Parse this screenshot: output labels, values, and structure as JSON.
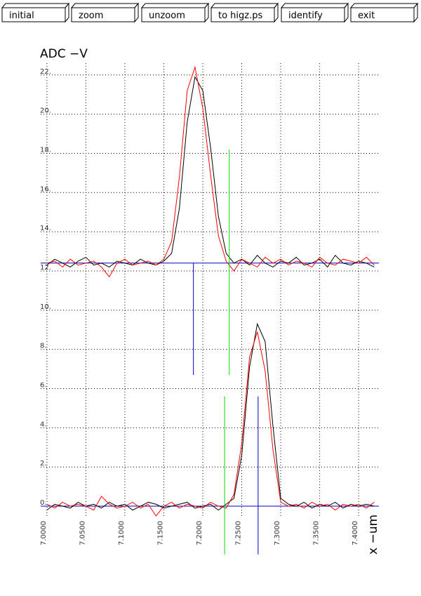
{
  "buttons": [
    "initial",
    "zoom",
    "unzoom",
    "to higz.ps",
    "identify",
    "exit"
  ],
  "chart_data": {
    "type": "line",
    "y_label": "ADC  −V",
    "x_label": "x  −um",
    "x": [
      7.0,
      7.01,
      7.02,
      7.03,
      7.04,
      7.05,
      7.06,
      7.07,
      7.08,
      7.09,
      7.1,
      7.11,
      7.12,
      7.13,
      7.14,
      7.15,
      7.16,
      7.17,
      7.18,
      7.19,
      7.2,
      7.21,
      7.22,
      7.23,
      7.24,
      7.25,
      7.26,
      7.27,
      7.28,
      7.29,
      7.3,
      7.31,
      7.32,
      7.33,
      7.34,
      7.35,
      7.36,
      7.37,
      7.38,
      7.39,
      7.4,
      7.41,
      7.42
    ],
    "series": [
      {
        "color": "#000000",
        "values": [
          12.3,
          12.6,
          12.4,
          12.2,
          12.5,
          12.7,
          12.3,
          12.4,
          12.2,
          12.5,
          12.4,
          12.3,
          12.6,
          12.4,
          12.3,
          12.5,
          12.9,
          15.2,
          19.6,
          21.9,
          21.2,
          18.3,
          14.8,
          12.9,
          12.4,
          12.6,
          12.3,
          12.8,
          12.4,
          12.2,
          12.5,
          12.4,
          12.7,
          12.3,
          12.4,
          12.6,
          12.2,
          12.8,
          12.4,
          12.3,
          12.5,
          12.4,
          12.2
        ]
      },
      {
        "color": "#ff0000",
        "values": [
          12.4,
          12.5,
          12.2,
          12.6,
          12.3,
          12.4,
          12.5,
          12.2,
          11.7,
          12.4,
          12.6,
          12.3,
          12.4,
          12.5,
          12.3,
          12.6,
          13.5,
          16.8,
          21.2,
          22.4,
          20.3,
          16.9,
          13.8,
          12.5,
          12.0,
          12.6,
          12.4,
          12.2,
          12.7,
          12.4,
          12.6,
          12.3,
          12.5,
          12.4,
          12.2,
          12.7,
          12.4,
          12.3,
          12.6,
          12.5,
          12.4,
          12.7,
          12.3
        ]
      },
      {
        "color": "#000000",
        "values": [
          -0.2,
          0.1,
          0.0,
          -0.1,
          0.2,
          0.0,
          0.1,
          -0.1,
          0.2,
          0.0,
          0.1,
          -0.2,
          0.0,
          0.2,
          0.1,
          -0.1,
          0.0,
          0.1,
          0.2,
          -0.1,
          0.0,
          0.1,
          -0.2,
          0.1,
          0.4,
          2.6,
          7.1,
          9.3,
          8.4,
          4.1,
          0.4,
          0.1,
          0.0,
          0.2,
          -0.1,
          0.1,
          0.0,
          0.2,
          -0.1,
          0.1,
          0.0,
          0.1,
          0.0
        ]
      },
      {
        "color": "#ff0000",
        "values": [
          0.1,
          -0.1,
          0.2,
          0.0,
          0.1,
          0.0,
          -0.2,
          0.5,
          0.1,
          -0.1,
          0.0,
          0.2,
          -0.1,
          0.1,
          -0.5,
          0.0,
          0.2,
          -0.1,
          0.1,
          0.0,
          -0.1,
          0.2,
          0.0,
          -0.1,
          0.6,
          3.2,
          7.6,
          8.9,
          6.9,
          2.9,
          0.2,
          0.0,
          0.1,
          -0.1,
          0.2,
          0.0,
          0.1,
          -0.2,
          0.1,
          0.0,
          0.1,
          -0.1,
          0.2
        ]
      }
    ],
    "hlines": [
      {
        "y": 12.4,
        "color": "#0000cc"
      },
      {
        "y": 0,
        "color": "#0000cc"
      }
    ],
    "markers": [
      {
        "x": 7.188,
        "y": [
          6.7,
          12.4
        ],
        "color": "#0000cc"
      },
      {
        "x": 7.234,
        "y": [
          6.7,
          18.2
        ],
        "color": "#00dd00"
      },
      {
        "x": 7.228,
        "y": [
          -2.46,
          5.6
        ],
        "color": "#00dd00"
      },
      {
        "x": 7.271,
        "y": [
          -2.46,
          5.6
        ],
        "color": "#0000cc"
      }
    ],
    "xlim": [
      6.992,
      7.426
    ],
    "xticks": [
      {
        "value": 7.0,
        "label": "7.0000"
      },
      {
        "value": 7.05,
        "label": "7.0500"
      },
      {
        "value": 7.1,
        "label": "7.1000"
      },
      {
        "value": 7.15,
        "label": "7.1500"
      },
      {
        "value": 7.2,
        "label": "7.2000"
      },
      {
        "value": 7.25,
        "label": "7.2500"
      },
      {
        "value": 7.3,
        "label": "7.3000"
      },
      {
        "value": 7.35,
        "label": "7.3500"
      },
      {
        "value": 7.4,
        "label": "7.4000"
      }
    ],
    "ylim": [
      -0.5,
      22.6
    ],
    "yticks": [
      {
        "value": 0,
        "label": "0."
      },
      {
        "value": 2,
        "label": "2."
      },
      {
        "value": 4,
        "label": "4."
      },
      {
        "value": 6,
        "label": "6."
      },
      {
        "value": 8,
        "label": "8."
      },
      {
        "value": 10,
        "label": "10."
      },
      {
        "value": 12,
        "label": "12."
      },
      {
        "value": 14,
        "label": "14."
      },
      {
        "value": 16,
        "label": "16."
      },
      {
        "value": 18,
        "label": "18."
      },
      {
        "value": 20,
        "label": "20."
      },
      {
        "value": 22,
        "label": "22."
      }
    ],
    "grid": true
  }
}
